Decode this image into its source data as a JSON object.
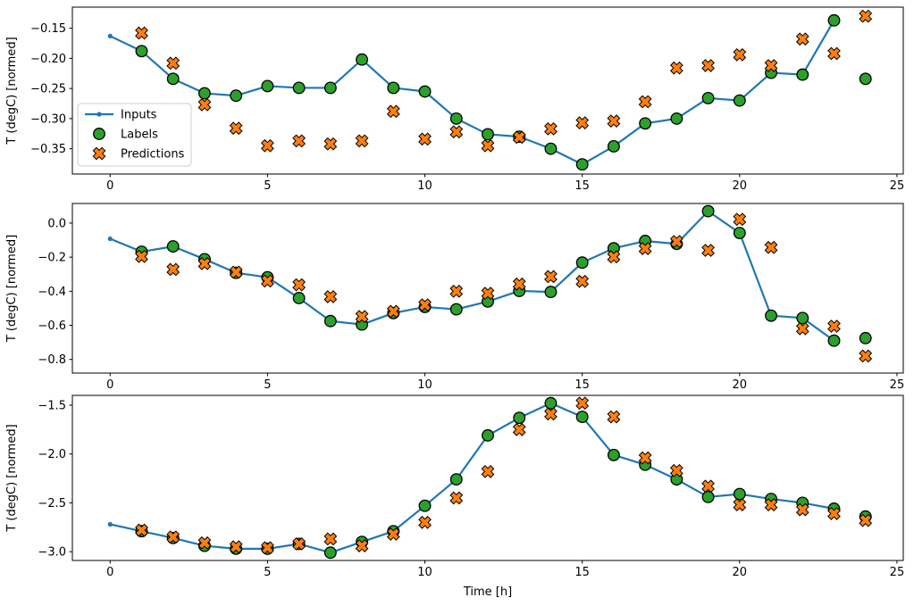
{
  "figure": {
    "kind": "matplotlib-figure",
    "background": "#ffffff"
  },
  "xlabel": "Time [h]",
  "xticks": {
    "values": [
      0,
      5,
      10,
      15,
      20,
      25
    ],
    "labels": [
      "0",
      "5",
      "10",
      "15",
      "20",
      "25"
    ]
  },
  "legend": {
    "entries": [
      "Inputs",
      "Labels",
      "Predictions"
    ],
    "position": "upper-left-of-top-subplot",
    "border_color": "#cccccc",
    "background": "#ffffff"
  },
  "colors": {
    "inputs_line": "#1f77b4",
    "labels_marker": "#2ca02c",
    "predictions_marker": "#ff7f0e",
    "marker_edge": "#000000",
    "axes": "#000000"
  },
  "chart_data": [
    {
      "id": "top",
      "type": "line",
      "ylabel": "T (degC) [normed]",
      "ylim": [
        -0.392,
        -0.115
      ],
      "xlim": [
        -1.2,
        25.2
      ],
      "yticks": {
        "values": [
          -0.15,
          -0.2,
          -0.25,
          -0.3,
          -0.35
        ],
        "labels": [
          "−0.15",
          "−0.20",
          "−0.25",
          "−0.30",
          "−0.35"
        ]
      },
      "series": [
        {
          "name": "Inputs",
          "kind": "line+dot",
          "color": "#1f77b4",
          "x": [
            0,
            1,
            2,
            3,
            4,
            5,
            6,
            7,
            8,
            9,
            10,
            11,
            12,
            13,
            14,
            15,
            16,
            17,
            18,
            19,
            20,
            21,
            22,
            23
          ],
          "y": [
            -0.163,
            -0.188,
            -0.234,
            -0.258,
            -0.262,
            -0.246,
            -0.249,
            -0.249,
            -0.202,
            -0.249,
            -0.255,
            -0.3,
            -0.326,
            -0.33,
            -0.35,
            -0.376,
            -0.346,
            -0.308,
            -0.3,
            -0.266,
            -0.27,
            -0.224,
            -0.227,
            -0.137
          ]
        },
        {
          "name": "Labels",
          "kind": "scatter-circle",
          "color": "#2ca02c",
          "x": [
            1,
            2,
            3,
            4,
            5,
            6,
            7,
            8,
            9,
            10,
            11,
            12,
            13,
            14,
            15,
            16,
            17,
            18,
            19,
            20,
            21,
            22,
            23,
            24
          ],
          "y": [
            -0.188,
            -0.234,
            -0.258,
            -0.262,
            -0.246,
            -0.249,
            -0.249,
            -0.202,
            -0.249,
            -0.255,
            -0.3,
            -0.326,
            -0.33,
            -0.35,
            -0.376,
            -0.346,
            -0.308,
            -0.3,
            -0.266,
            -0.27,
            -0.224,
            -0.227,
            -0.137,
            -0.234
          ]
        },
        {
          "name": "Predictions",
          "kind": "scatter-x",
          "color": "#ff7f0e",
          "x": [
            1,
            2,
            3,
            4,
            5,
            6,
            7,
            8,
            9,
            10,
            11,
            12,
            13,
            14,
            15,
            16,
            17,
            18,
            19,
            20,
            21,
            22,
            23,
            24
          ],
          "y": [
            -0.158,
            -0.208,
            -0.277,
            -0.316,
            -0.345,
            -0.337,
            -0.342,
            -0.337,
            -0.288,
            -0.334,
            -0.322,
            -0.345,
            -0.331,
            -0.317,
            -0.307,
            -0.304,
            -0.272,
            -0.216,
            -0.212,
            -0.194,
            -0.212,
            -0.168,
            -0.192,
            -0.13
          ]
        }
      ]
    },
    {
      "id": "middle",
      "type": "line",
      "ylabel": "T (degC) [normed]",
      "ylim": [
        -0.88,
        0.115
      ],
      "xlim": [
        -1.2,
        25.2
      ],
      "yticks": {
        "values": [
          0.0,
          -0.2,
          -0.4,
          -0.6,
          -0.8
        ],
        "labels": [
          "0.0",
          "−0.2",
          "−0.4",
          "−0.6",
          "−0.8"
        ]
      },
      "series": [
        {
          "name": "Inputs",
          "kind": "line+dot",
          "color": "#1f77b4",
          "x": [
            0,
            1,
            2,
            3,
            4,
            5,
            6,
            7,
            8,
            9,
            10,
            11,
            12,
            13,
            14,
            15,
            16,
            17,
            18,
            19,
            20,
            21,
            22,
            23
          ],
          "y": [
            -0.092,
            -0.168,
            -0.137,
            -0.212,
            -0.292,
            -0.318,
            -0.44,
            -0.575,
            -0.595,
            -0.528,
            -0.492,
            -0.506,
            -0.46,
            -0.398,
            -0.404,
            -0.232,
            -0.148,
            -0.105,
            -0.122,
            0.07,
            -0.058,
            -0.543,
            -0.557,
            -0.69
          ]
        },
        {
          "name": "Labels",
          "kind": "scatter-circle",
          "color": "#2ca02c",
          "x": [
            1,
            2,
            3,
            4,
            5,
            6,
            7,
            8,
            9,
            10,
            11,
            12,
            13,
            14,
            15,
            16,
            17,
            18,
            19,
            20,
            21,
            22,
            23,
            24
          ],
          "y": [
            -0.168,
            -0.137,
            -0.212,
            -0.292,
            -0.318,
            -0.44,
            -0.575,
            -0.595,
            -0.528,
            -0.492,
            -0.506,
            -0.46,
            -0.398,
            -0.404,
            -0.232,
            -0.148,
            -0.105,
            -0.122,
            0.07,
            -0.058,
            -0.543,
            -0.557,
            -0.69,
            -0.675
          ]
        },
        {
          "name": "Predictions",
          "kind": "scatter-x",
          "color": "#ff7f0e",
          "x": [
            1,
            2,
            3,
            4,
            5,
            6,
            7,
            8,
            9,
            10,
            11,
            12,
            13,
            14,
            15,
            16,
            17,
            18,
            19,
            20,
            21,
            22,
            23,
            24
          ],
          "y": [
            -0.196,
            -0.272,
            -0.238,
            -0.288,
            -0.34,
            -0.362,
            -0.432,
            -0.548,
            -0.518,
            -0.48,
            -0.4,
            -0.412,
            -0.358,
            -0.314,
            -0.342,
            -0.198,
            -0.15,
            -0.108,
            -0.16,
            0.022,
            -0.143,
            -0.62,
            -0.605,
            -0.78
          ]
        }
      ]
    },
    {
      "id": "bottom",
      "type": "line",
      "ylabel": "T (degC) [normed]",
      "ylim": [
        -3.09,
        -1.4
      ],
      "xlim": [
        -1.2,
        25.2
      ],
      "yticks": {
        "values": [
          -1.5,
          -2.0,
          -2.5,
          -3.0
        ],
        "labels": [
          "−1.5",
          "−2.0",
          "−2.5",
          "−3.0"
        ]
      },
      "series": [
        {
          "name": "Inputs",
          "kind": "line+dot",
          "color": "#1f77b4",
          "x": [
            0,
            1,
            2,
            3,
            4,
            5,
            6,
            7,
            8,
            9,
            10,
            11,
            12,
            13,
            14,
            15,
            16,
            17,
            18,
            19,
            20,
            21,
            22,
            23
          ],
          "y": [
            -2.72,
            -2.79,
            -2.86,
            -2.94,
            -2.97,
            -2.97,
            -2.92,
            -3.01,
            -2.9,
            -2.79,
            -2.53,
            -2.26,
            -1.81,
            -1.63,
            -1.48,
            -1.62,
            -2.01,
            -2.11,
            -2.26,
            -2.44,
            -2.41,
            -2.46,
            -2.5,
            -2.56
          ]
        },
        {
          "name": "Labels",
          "kind": "scatter-circle",
          "color": "#2ca02c",
          "x": [
            1,
            2,
            3,
            4,
            5,
            6,
            7,
            8,
            9,
            10,
            11,
            12,
            13,
            14,
            15,
            16,
            17,
            18,
            19,
            20,
            21,
            22,
            23,
            24
          ],
          "y": [
            -2.79,
            -2.86,
            -2.94,
            -2.97,
            -2.97,
            -2.92,
            -3.01,
            -2.9,
            -2.79,
            -2.53,
            -2.26,
            -1.81,
            -1.63,
            -1.48,
            -1.62,
            -2.01,
            -2.11,
            -2.26,
            -2.44,
            -2.41,
            -2.46,
            -2.5,
            -2.56,
            -2.64
          ]
        },
        {
          "name": "Predictions",
          "kind": "scatter-x",
          "color": "#ff7f0e",
          "x": [
            1,
            2,
            3,
            4,
            5,
            6,
            7,
            8,
            9,
            10,
            11,
            12,
            13,
            14,
            15,
            16,
            17,
            18,
            19,
            20,
            21,
            22,
            23,
            24
          ],
          "y": [
            -2.78,
            -2.85,
            -2.91,
            -2.95,
            -2.96,
            -2.92,
            -2.87,
            -2.94,
            -2.82,
            -2.7,
            -2.45,
            -2.18,
            -1.75,
            -1.59,
            -1.48,
            -1.62,
            -2.04,
            -2.17,
            -2.33,
            -2.52,
            -2.52,
            -2.57,
            -2.61,
            -2.68
          ]
        }
      ]
    }
  ]
}
